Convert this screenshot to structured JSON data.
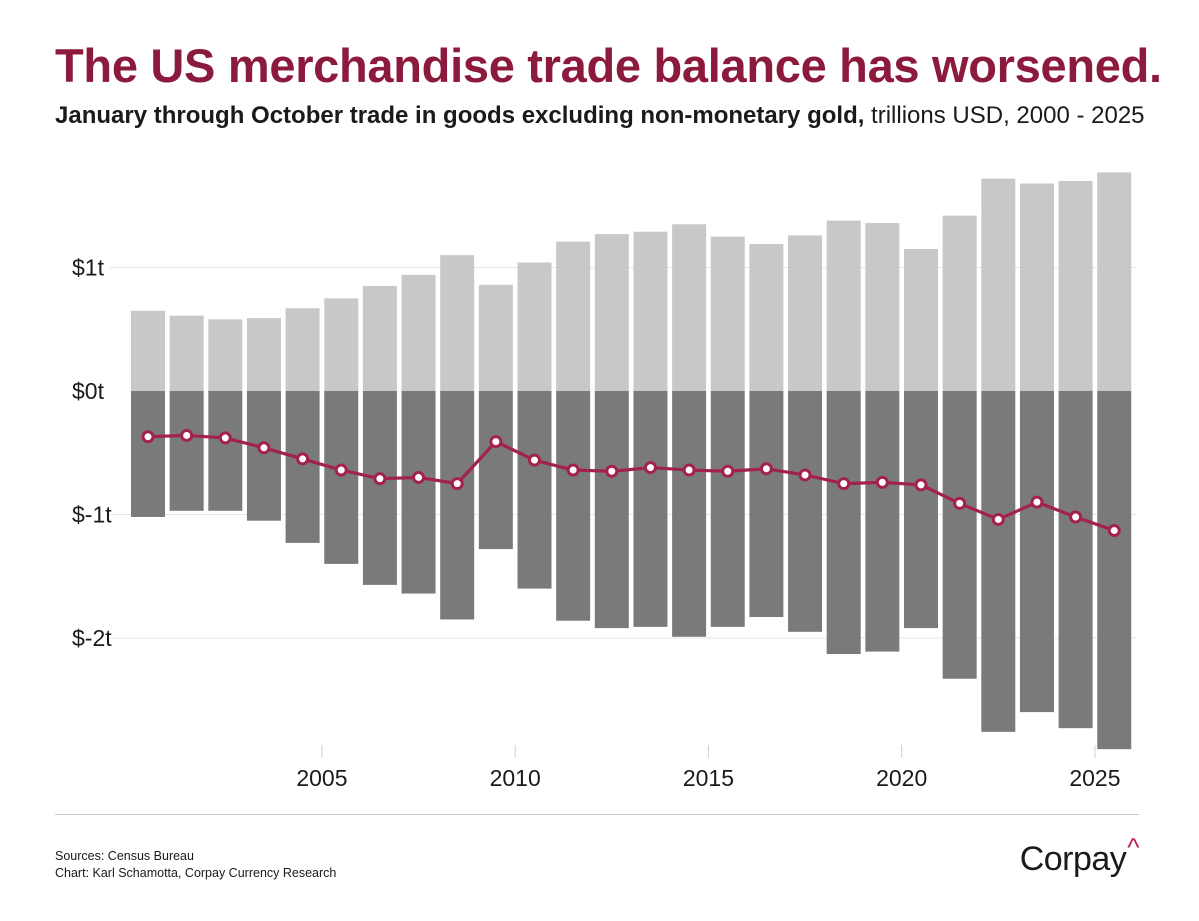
{
  "header": {
    "title": "The US merchandise trade balance has worsened.",
    "subtitle_bold": "January through October trade in goods excluding non-monetary gold,",
    "subtitle_normal": " trillions USD, 2000 - 2025"
  },
  "footer": {
    "sources": "Sources: Census Bureau",
    "chart_credit": "Chart: Karl Schamotta, Corpay Currency Research",
    "logo_text": "Corpay",
    "logo_mark": "^"
  },
  "colors": {
    "exports": "#c8c8c8",
    "imports": "#7a7a7a",
    "balance_line": "#a3224a",
    "gridline": "#e6e6e6",
    "axis_text": "#1a1a1a"
  },
  "chart_data": {
    "type": "bar",
    "title": "The US merchandise trade balance has worsened.",
    "subtitle": "January through October trade in goods excluding non-monetary gold, trillions USD, 2000 - 2025",
    "x": [
      2000,
      2001,
      2002,
      2003,
      2004,
      2005,
      2006,
      2007,
      2008,
      2009,
      2010,
      2011,
      2012,
      2013,
      2014,
      2015,
      2016,
      2017,
      2018,
      2019,
      2020,
      2021,
      2022,
      2023,
      2024,
      2025
    ],
    "x_tick_labels": [
      "2005",
      "2010",
      "2015",
      "2020",
      "2025"
    ],
    "x_tick_values": [
      2005,
      2010,
      2015,
      2020,
      2025
    ],
    "y_tick_labels": [
      "$1t",
      "$0t",
      "$-1t",
      "$-2t"
    ],
    "y_tick_values": [
      1,
      0,
      -1,
      -2
    ],
    "ylim": [
      -3.0,
      1.8
    ],
    "series": [
      {
        "name": "Exports",
        "kind": "bar",
        "values": [
          0.65,
          0.61,
          0.58,
          0.59,
          0.67,
          0.75,
          0.85,
          0.94,
          1.1,
          0.86,
          1.04,
          1.21,
          1.27,
          1.29,
          1.35,
          1.25,
          1.19,
          1.26,
          1.38,
          1.36,
          1.15,
          1.42,
          1.72,
          1.68,
          1.7,
          1.77
        ]
      },
      {
        "name": "Imports",
        "kind": "bar",
        "values": [
          -1.02,
          -0.97,
          -0.97,
          -1.05,
          -1.23,
          -1.4,
          -1.57,
          -1.64,
          -1.85,
          -1.28,
          -1.6,
          -1.86,
          -1.92,
          -1.91,
          -1.99,
          -1.91,
          -1.83,
          -1.95,
          -2.13,
          -2.11,
          -1.92,
          -2.33,
          -2.76,
          -2.6,
          -2.73,
          -2.9
        ]
      },
      {
        "name": "Balance",
        "kind": "line",
        "values": [
          -0.37,
          -0.36,
          -0.38,
          -0.46,
          -0.55,
          -0.64,
          -0.71,
          -0.7,
          -0.75,
          -0.41,
          -0.56,
          -0.64,
          -0.65,
          -0.62,
          -0.64,
          -0.65,
          -0.63,
          -0.68,
          -0.75,
          -0.74,
          -0.76,
          -0.91,
          -1.04,
          -0.9,
          -1.02,
          -1.13
        ]
      }
    ]
  }
}
